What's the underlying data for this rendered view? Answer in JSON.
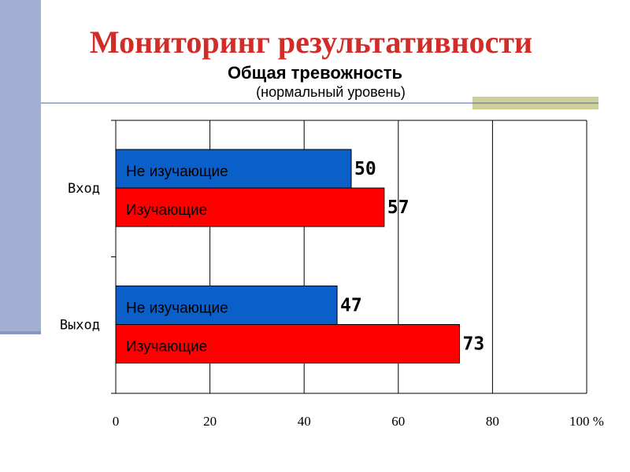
{
  "slide": {
    "title": "Мониторинг результативности",
    "title_color": "#d32b27",
    "accent_color": "#a3aed3"
  },
  "chart_data": {
    "type": "bar",
    "orientation": "horizontal",
    "title": "Общая тревожность",
    "subtitle": "(нормальный уровень)",
    "categories": [
      "Вход",
      "Выход"
    ],
    "series": [
      {
        "name": "Не изучающие",
        "values": [
          50,
          47
        ],
        "color": "#0a5fc8"
      },
      {
        "name": "Изучающие",
        "values": [
          57,
          73
        ],
        "color": "#ff0000"
      }
    ],
    "xlim": [
      0,
      100
    ],
    "x_ticks": [
      0,
      20,
      40,
      60,
      80,
      100
    ],
    "x_unit": "%",
    "grid": true,
    "legend": "none"
  }
}
